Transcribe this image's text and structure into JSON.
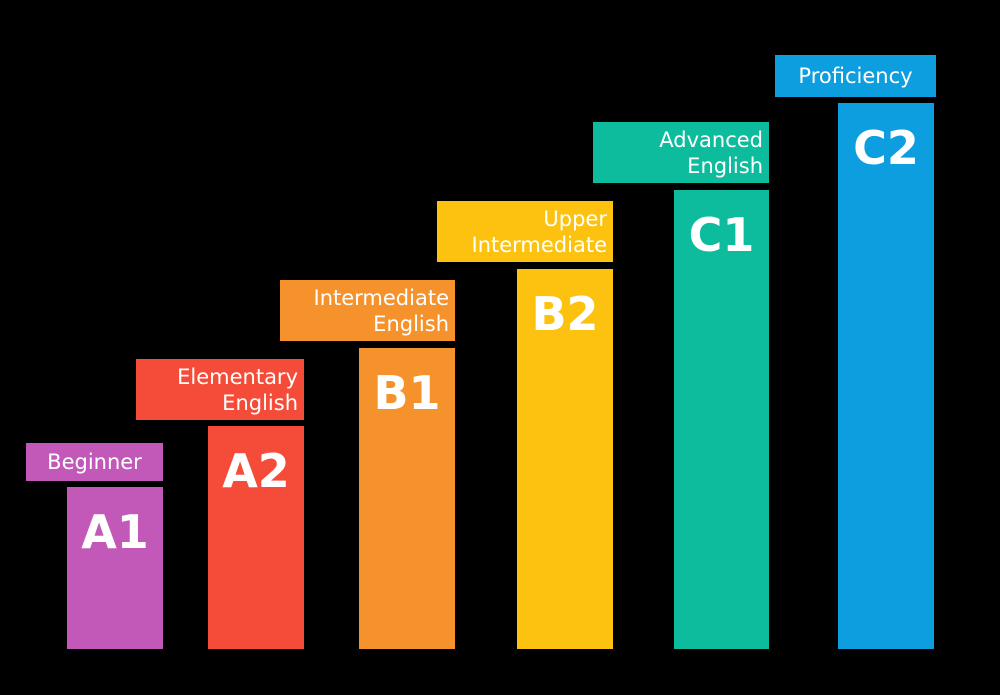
{
  "levels": [
    {
      "code": "A1",
      "description": "Beginner",
      "color": "#c259b8"
    },
    {
      "code": "A2",
      "description": "Elementary\nEnglish",
      "color": "#f44c38"
    },
    {
      "code": "B1",
      "description": "Intermediate\nEnglish",
      "color": "#f5922b"
    },
    {
      "code": "B2",
      "description": "Upper\nIntermediate",
      "color": "#fdc20f"
    },
    {
      "code": "C1",
      "description": "Advanced\nEnglish",
      "color": "#0cbc9c"
    },
    {
      "code": "C2",
      "description": "Proficiency",
      "color": "#0d9ee0"
    }
  ]
}
